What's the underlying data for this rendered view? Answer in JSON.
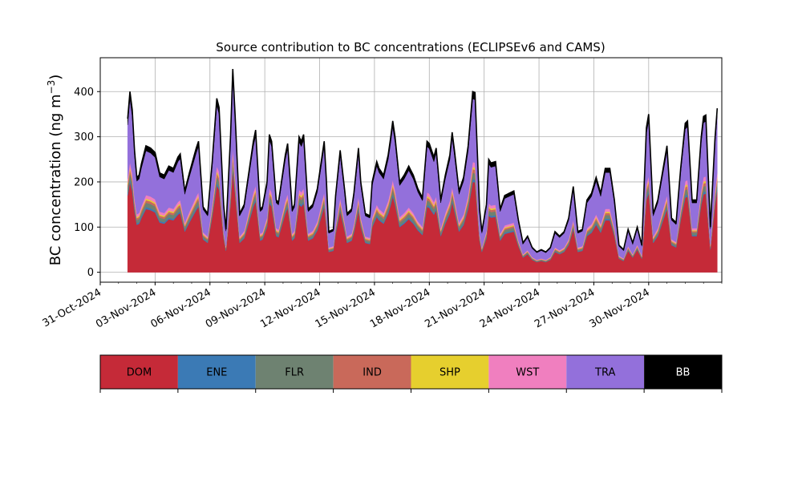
{
  "chart_data": {
    "type": "area",
    "title": "Source contribution to BC concentrations (ECLIPSEv6 and CAMS)",
    "ylabel": "BC concentration (ng m⁻³)",
    "ylabel_main": "BC concentration (ng m",
    "ylabel_unit_exp": "−3",
    "ylabel_close": ")",
    "xlabel": "",
    "stacked": true,
    "grid": true,
    "ylim": [
      -22,
      475
    ],
    "yticks": [
      0,
      100,
      200,
      300,
      400
    ],
    "xlim": [
      "2024-10-31",
      "2024-12-04"
    ],
    "xtick_dates": [
      "2024-10-31",
      "2024-11-03",
      "2024-11-06",
      "2024-11-09",
      "2024-11-12",
      "2024-11-15",
      "2024-11-18",
      "2024-11-21",
      "2024-11-24",
      "2024-11-27",
      "2024-11-30"
    ],
    "xtick_labels": [
      "31-Oct-2024",
      "03-Nov-2024",
      "06-Nov-2024",
      "09-Nov-2024",
      "12-Nov-2024",
      "15-Nov-2024",
      "18-Nov-2024",
      "21-Nov-2024",
      "24-Nov-2024",
      "27-Nov-2024",
      "30-Nov-2024"
    ],
    "total_keypoints": [
      [
        "2024-11-01T12:00",
        340
      ],
      [
        "2024-11-01T15:00",
        400
      ],
      [
        "2024-11-01T18:00",
        360
      ],
      [
        "2024-11-01T21:00",
        270
      ],
      [
        "2024-11-02T00:00",
        210
      ],
      [
        "2024-11-02T03:00",
        215
      ],
      [
        "2024-11-02T06:00",
        240
      ],
      [
        "2024-11-02T12:00",
        280
      ],
      [
        "2024-11-02T18:00",
        275
      ],
      [
        "2024-11-03T00:00",
        265
      ],
      [
        "2024-11-03T06:00",
        220
      ],
      [
        "2024-11-03T12:00",
        215
      ],
      [
        "2024-11-03T18:00",
        235
      ],
      [
        "2024-11-04T00:00",
        230
      ],
      [
        "2024-11-04T06:00",
        255
      ],
      [
        "2024-11-04T09:00",
        262
      ],
      [
        "2024-11-04T15:00",
        180
      ],
      [
        "2024-11-04T21:00",
        220
      ],
      [
        "2024-11-05T06:00",
        275
      ],
      [
        "2024-11-05T09:00",
        290
      ],
      [
        "2024-11-05T15:00",
        145
      ],
      [
        "2024-11-05T21:00",
        130
      ],
      [
        "2024-11-06T03:00",
        245
      ],
      [
        "2024-11-06T09:00",
        385
      ],
      [
        "2024-11-06T12:00",
        365
      ],
      [
        "2024-11-06T18:00",
        150
      ],
      [
        "2024-11-06T21:00",
        95
      ],
      [
        "2024-11-07T03:00",
        300
      ],
      [
        "2024-11-07T06:00",
        450
      ],
      [
        "2024-11-07T09:00",
        350
      ],
      [
        "2024-11-07T15:00",
        130
      ],
      [
        "2024-11-07T21:00",
        150
      ],
      [
        "2024-11-08T03:00",
        220
      ],
      [
        "2024-11-08T09:00",
        290
      ],
      [
        "2024-11-08T12:00",
        315
      ],
      [
        "2024-11-08T18:00",
        140
      ],
      [
        "2024-11-08T21:00",
        145
      ],
      [
        "2024-11-09T03:00",
        200
      ],
      [
        "2024-11-09T06:00",
        305
      ],
      [
        "2024-11-09T09:00",
        290
      ],
      [
        "2024-11-09T15:00",
        160
      ],
      [
        "2024-11-09T18:00",
        155
      ],
      [
        "2024-11-09T21:00",
        190
      ],
      [
        "2024-11-10T03:00",
        260
      ],
      [
        "2024-11-10T06:00",
        285
      ],
      [
        "2024-11-10T12:00",
        140
      ],
      [
        "2024-11-10T15:00",
        150
      ],
      [
        "2024-11-10T21:00",
        300
      ],
      [
        "2024-11-11T00:00",
        290
      ],
      [
        "2024-11-11T03:00",
        305
      ],
      [
        "2024-11-11T09:00",
        140
      ],
      [
        "2024-11-11T15:00",
        150
      ],
      [
        "2024-11-11T21:00",
        185
      ],
      [
        "2024-11-12T06:00",
        290
      ],
      [
        "2024-11-12T09:00",
        200
      ],
      [
        "2024-11-12T12:00",
        90
      ],
      [
        "2024-11-12T18:00",
        95
      ],
      [
        "2024-11-12T21:00",
        170
      ],
      [
        "2024-11-13T03:00",
        270
      ],
      [
        "2024-11-13T09:00",
        180
      ],
      [
        "2024-11-13T12:00",
        130
      ],
      [
        "2024-11-13T18:00",
        140
      ],
      [
        "2024-11-13T21:00",
        175
      ],
      [
        "2024-11-14T03:00",
        275
      ],
      [
        "2024-11-14T06:00",
        200
      ],
      [
        "2024-11-14T12:00",
        130
      ],
      [
        "2024-11-14T18:00",
        125
      ],
      [
        "2024-11-14T21:00",
        200
      ],
      [
        "2024-11-15T03:00",
        245
      ],
      [
        "2024-11-15T06:00",
        230
      ],
      [
        "2024-11-15T12:00",
        215
      ],
      [
        "2024-11-15T18:00",
        260
      ],
      [
        "2024-11-15T21:00",
        295
      ],
      [
        "2024-11-16T00:00",
        335
      ],
      [
        "2024-11-16T03:00",
        300
      ],
      [
        "2024-11-16T09:00",
        200
      ],
      [
        "2024-11-16T15:00",
        215
      ],
      [
        "2024-11-16T21:00",
        235
      ],
      [
        "2024-11-17T03:00",
        215
      ],
      [
        "2024-11-17T09:00",
        185
      ],
      [
        "2024-11-17T15:00",
        165
      ],
      [
        "2024-11-17T21:00",
        290
      ],
      [
        "2024-11-18T00:00",
        285
      ],
      [
        "2024-11-18T06:00",
        255
      ],
      [
        "2024-11-18T09:00",
        275
      ],
      [
        "2024-11-18T15:00",
        160
      ],
      [
        "2024-11-18T21:00",
        215
      ],
      [
        "2024-11-19T03:00",
        260
      ],
      [
        "2024-11-19T06:00",
        310
      ],
      [
        "2024-11-19T09:00",
        270
      ],
      [
        "2024-11-19T15:00",
        180
      ],
      [
        "2024-11-19T21:00",
        210
      ],
      [
        "2024-11-20T03:00",
        280
      ],
      [
        "2024-11-20T09:00",
        400
      ],
      [
        "2024-11-20T12:00",
        398
      ],
      [
        "2024-11-20T18:00",
        140
      ],
      [
        "2024-11-20T21:00",
        90
      ],
      [
        "2024-11-21T03:00",
        150
      ],
      [
        "2024-11-21T06:00",
        250
      ],
      [
        "2024-11-21T09:00",
        242
      ],
      [
        "2024-11-21T15:00",
        245
      ],
      [
        "2024-11-21T21:00",
        140
      ],
      [
        "2024-11-22T03:00",
        170
      ],
      [
        "2024-11-22T09:00",
        175
      ],
      [
        "2024-11-22T15:00",
        180
      ],
      [
        "2024-11-22T21:00",
        115
      ],
      [
        "2024-11-23T03:00",
        65
      ],
      [
        "2024-11-23T09:00",
        80
      ],
      [
        "2024-11-23T15:00",
        55
      ],
      [
        "2024-11-23T21:00",
        45
      ],
      [
        "2024-11-24T03:00",
        50
      ],
      [
        "2024-11-24T09:00",
        45
      ],
      [
        "2024-11-24T15:00",
        55
      ],
      [
        "2024-11-24T21:00",
        90
      ],
      [
        "2024-11-25T03:00",
        80
      ],
      [
        "2024-11-25T09:00",
        90
      ],
      [
        "2024-11-25T15:00",
        120
      ],
      [
        "2024-11-25T21:00",
        190
      ],
      [
        "2024-11-26T03:00",
        90
      ],
      [
        "2024-11-26T09:00",
        95
      ],
      [
        "2024-11-26T15:00",
        160
      ],
      [
        "2024-11-26T21:00",
        175
      ],
      [
        "2024-11-27T03:00",
        210
      ],
      [
        "2024-11-27T09:00",
        175
      ],
      [
        "2024-11-27T15:00",
        230
      ],
      [
        "2024-11-27T21:00",
        230
      ],
      [
        "2024-11-28T03:00",
        160
      ],
      [
        "2024-11-28T09:00",
        60
      ],
      [
        "2024-11-28T15:00",
        50
      ],
      [
        "2024-11-28T21:00",
        95
      ],
      [
        "2024-11-29T03:00",
        65
      ],
      [
        "2024-11-29T09:00",
        100
      ],
      [
        "2024-11-29T15:00",
        60
      ],
      [
        "2024-11-29T21:00",
        320
      ],
      [
        "2024-11-30T00:00",
        350
      ],
      [
        "2024-11-30T06:00",
        130
      ],
      [
        "2024-11-30T12:00",
        160
      ],
      [
        "2024-11-30T18:00",
        220
      ],
      [
        "2024-12-01T00:00",
        280
      ],
      [
        "2024-12-01T06:00",
        120
      ],
      [
        "2024-12-01T12:00",
        110
      ],
      [
        "2024-12-01T18:00",
        230
      ],
      [
        "2024-12-02T00:00",
        330
      ],
      [
        "2024-12-02T03:00",
        335
      ],
      [
        "2024-12-02T09:00",
        160
      ],
      [
        "2024-12-02T15:00",
        160
      ],
      [
        "2024-12-02T21:00",
        300
      ],
      [
        "2024-12-03T00:00",
        345
      ],
      [
        "2024-12-03T03:00",
        348
      ],
      [
        "2024-12-03T09:00",
        100
      ],
      [
        "2024-12-03T15:00",
        295
      ],
      [
        "2024-12-03T18:00",
        363
      ]
    ],
    "series": [
      {
        "name": "DOM",
        "color": "#c52a38",
        "text_color": "#000000",
        "share": 0.5
      },
      {
        "name": "ENE",
        "color": "#3b7ab5",
        "text_color": "#000000",
        "share": 0.015
      },
      {
        "name": "FLR",
        "color": "#6e8271",
        "text_color": "#000000",
        "share": 0.035
      },
      {
        "name": "IND",
        "color": "#c9695a",
        "text_color": "#000000",
        "share": 0.02
      },
      {
        "name": "SHP",
        "color": "#e6cf2e",
        "text_color": "#000000",
        "share": 0.012
      },
      {
        "name": "WST",
        "color": "#f07fbf",
        "text_color": "#000000",
        "share": 0.028
      },
      {
        "name": "TRA",
        "color": "#9370db",
        "text_color": "#000000",
        "share": 0.35
      },
      {
        "name": "BB",
        "color": "#000000",
        "text_color": "#ffffff",
        "share": 0.04
      }
    ]
  }
}
